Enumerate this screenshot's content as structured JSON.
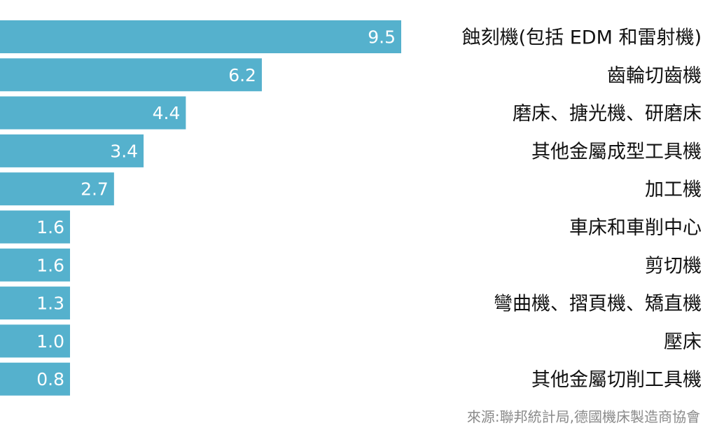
{
  "chart_data": {
    "type": "bar",
    "orientation": "horizontal",
    "categories": [
      "蝕刻機(包括 EDM 和雷射機)",
      "齒輪切齒機",
      "磨床、搪光機、研磨床",
      "其他金屬成型工具機",
      "加工機",
      "車床和車削中心",
      "剪切機",
      "彎曲機、摺頁機、矯直機",
      "壓床",
      "其他金屬切削工具機"
    ],
    "values": [
      9.5,
      6.2,
      4.4,
      3.4,
      2.7,
      1.6,
      1.6,
      1.3,
      1.0,
      0.8
    ],
    "value_labels": [
      "9.5",
      "6.2",
      "4.4",
      "3.4",
      "2.7",
      "1.6",
      "1.6",
      "1.3",
      "1.0",
      "0.8"
    ],
    "xlim": [
      0,
      9.5
    ],
    "bar_color": "#55b1cd",
    "grid": false,
    "legend": "none"
  },
  "source": "來源:聯邦統計局,德國機床製造商協會"
}
